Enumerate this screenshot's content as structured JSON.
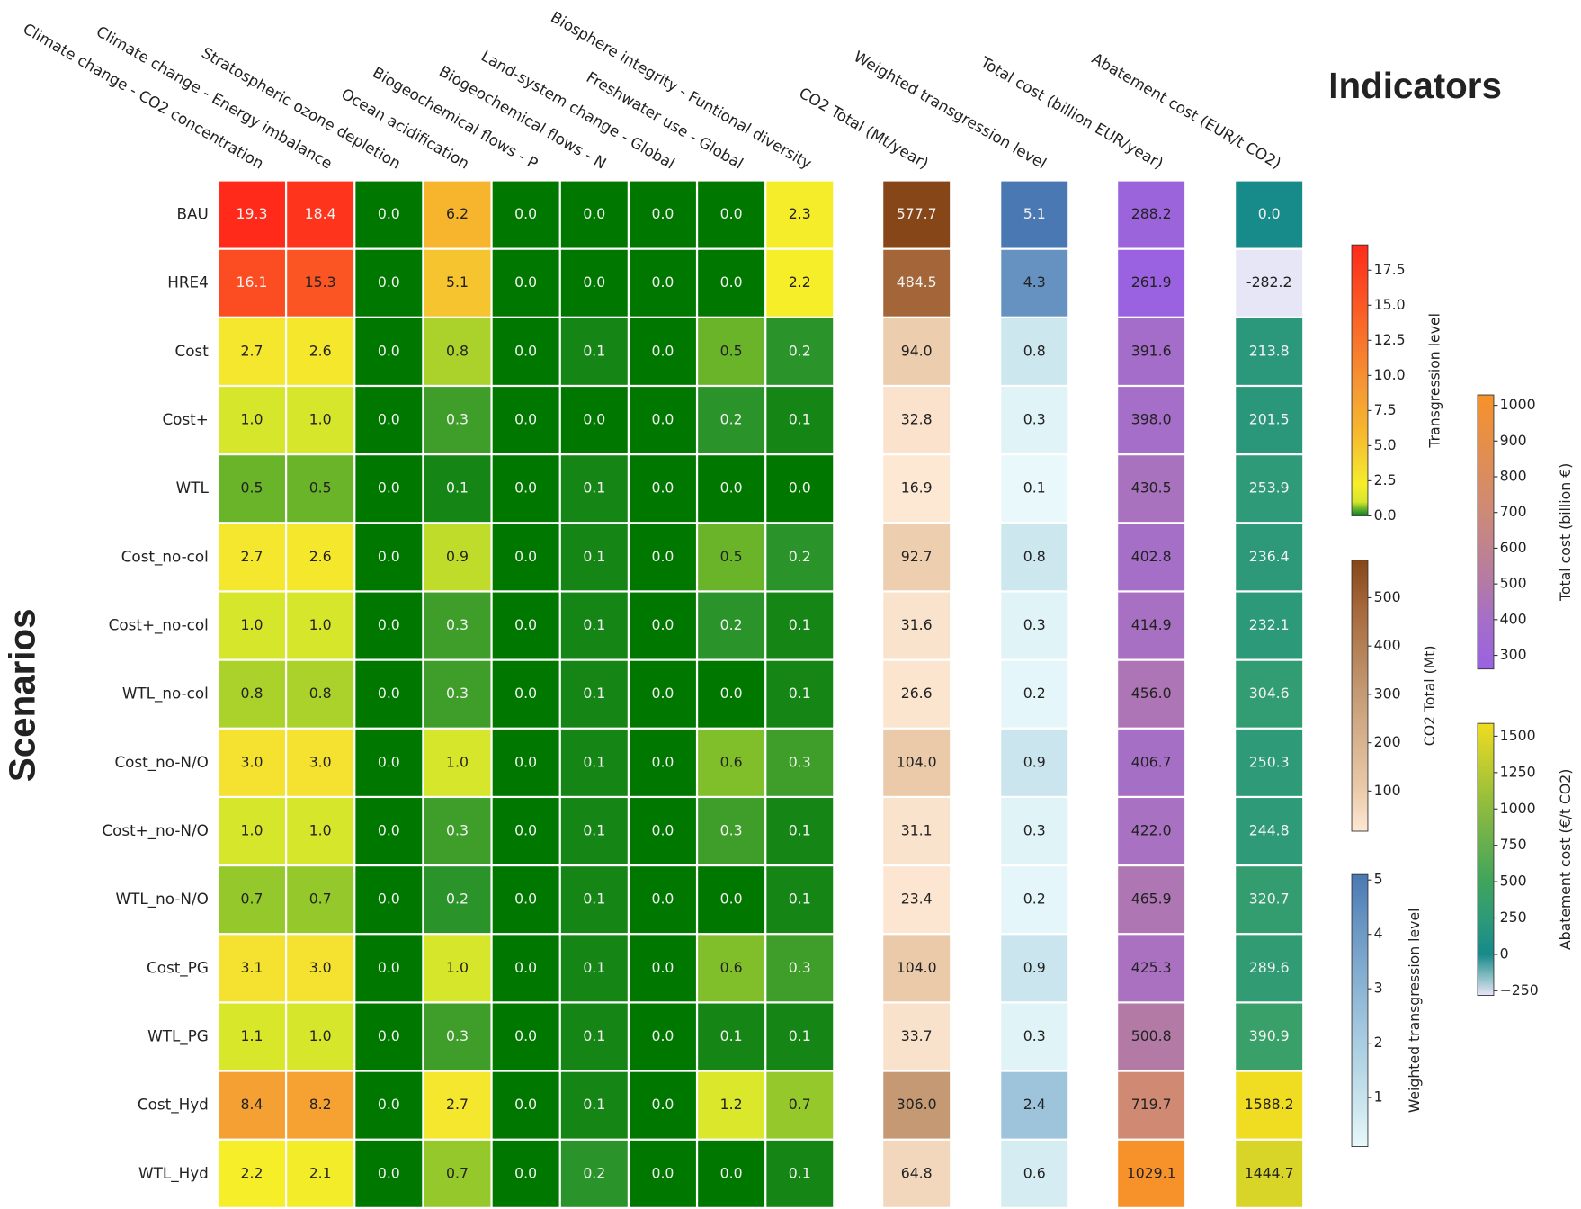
{
  "chart_data": {
    "type": "heatmap",
    "title": "Indicators",
    "ylabel": "Scenarios",
    "rows": [
      "BAU",
      "HRE4",
      "Cost",
      "Cost+",
      "WTL",
      "Cost_no-col",
      "Cost+_no-col",
      "WTL_no-col",
      "Cost_no-N/O",
      "Cost+_no-N/O",
      "WTL_no-N/O",
      "Cost_PG",
      "WTL_PG",
      "Cost_Hyd",
      "WTL_Hyd"
    ],
    "groups": [
      {
        "columns": [
          "Climate change - CO2 concentration",
          "Climate change - Energy imbalance",
          "Stratospheric ozone depletion",
          "Ocean acidification",
          "Biogeochemical flows - P",
          "Biogeochemical flows - N",
          "Land-system change - Global",
          "Freshwater use - Global",
          "Biosphere integrity - Funtional diversity"
        ],
        "values": [
          [
            19.3,
            18.4,
            0.0,
            6.2,
            0.0,
            0.0,
            0.0,
            0.0,
            2.3
          ],
          [
            16.1,
            15.3,
            0.0,
            5.1,
            0.0,
            0.0,
            0.0,
            0.0,
            2.2
          ],
          [
            2.7,
            2.6,
            0.0,
            0.8,
            0.0,
            0.1,
            0.0,
            0.5,
            0.2
          ],
          [
            1.0,
            1.0,
            0.0,
            0.3,
            0.0,
            0.0,
            0.0,
            0.2,
            0.1
          ],
          [
            0.5,
            0.5,
            0.0,
            0.1,
            0.0,
            0.1,
            0.0,
            0.0,
            0.0
          ],
          [
            2.7,
            2.6,
            0.0,
            0.9,
            0.0,
            0.1,
            0.0,
            0.5,
            0.2
          ],
          [
            1.0,
            1.0,
            0.0,
            0.3,
            0.0,
            0.1,
            0.0,
            0.2,
            0.1
          ],
          [
            0.8,
            0.8,
            0.0,
            0.3,
            0.0,
            0.1,
            0.0,
            0.0,
            0.1
          ],
          [
            3.0,
            3.0,
            0.0,
            1.0,
            0.0,
            0.1,
            0.0,
            0.6,
            0.3
          ],
          [
            1.0,
            1.0,
            0.0,
            0.3,
            0.0,
            0.1,
            0.0,
            0.3,
            0.1
          ],
          [
            0.7,
            0.7,
            0.0,
            0.2,
            0.0,
            0.1,
            0.0,
            0.0,
            0.1
          ],
          [
            3.1,
            3.0,
            0.0,
            1.0,
            0.0,
            0.1,
            0.0,
            0.6,
            0.3
          ],
          [
            1.1,
            1.0,
            0.0,
            0.3,
            0.0,
            0.1,
            0.0,
            0.1,
            0.1
          ],
          [
            8.4,
            8.2,
            0.0,
            2.7,
            0.0,
            0.1,
            0.0,
            1.2,
            0.7
          ],
          [
            2.2,
            2.1,
            0.0,
            0.7,
            0.0,
            0.2,
            0.0,
            0.0,
            0.1
          ]
        ],
        "value_labels": [
          [
            "19.3",
            "18.4",
            "0.0",
            "6.2",
            "0.0",
            "0.0",
            "0.0",
            "0.0",
            "2.3"
          ],
          [
            "16.1",
            "15.3",
            "0.0",
            "5.1",
            "0.0",
            "0.0",
            "0.0",
            "0.0",
            "2.2"
          ],
          [
            "2.7",
            "2.6",
            "0.0",
            "0.8",
            "0.0",
            "0.1",
            "0.0",
            "0.5",
            "0.2"
          ],
          [
            "1.0",
            "1.0",
            "0.0",
            "0.3",
            "0.0",
            "0.0",
            "0.0",
            "0.2",
            "0.1"
          ],
          [
            "0.5",
            "0.5",
            "0.0",
            "0.1",
            "0.0",
            "0.1",
            "0.0",
            "0.0",
            "0.0"
          ],
          [
            "2.7",
            "2.6",
            "0.0",
            "0.9",
            "0.0",
            "0.1",
            "0.0",
            "0.5",
            "0.2"
          ],
          [
            "1.0",
            "1.0",
            "0.0",
            "0.3",
            "0.0",
            "0.1",
            "0.0",
            "0.2",
            "0.1"
          ],
          [
            "0.8",
            "0.8",
            "0.0",
            "0.3",
            "0.0",
            "0.1",
            "0.0",
            "0.0",
            "0.1"
          ],
          [
            "3.0",
            "3.0",
            "0.0",
            "1.0",
            "0.0",
            "0.1",
            "0.0",
            "0.6",
            "0.3"
          ],
          [
            "1.0",
            "1.0",
            "0.0",
            "0.3",
            "0.0",
            "0.1",
            "0.0",
            "0.3",
            "0.1"
          ],
          [
            "0.7",
            "0.7",
            "0.0",
            "0.2",
            "0.0",
            "0.1",
            "0.0",
            "0.0",
            "0.1"
          ],
          [
            "3.1",
            "3.0",
            "0.0",
            "1.0",
            "0.0",
            "0.1",
            "0.0",
            "0.6",
            "0.3"
          ],
          [
            "1.1",
            "1.0",
            "0.0",
            "0.3",
            "0.0",
            "0.1",
            "0.0",
            "0.1",
            "0.1"
          ],
          [
            "8.4",
            "8.2",
            "0.0",
            "2.7",
            "0.0",
            "0.1",
            "0.0",
            "1.2",
            "0.7"
          ],
          [
            "2.2",
            "2.1",
            "0.0",
            "0.7",
            "0.0",
            "0.2",
            "0.0",
            "0.0",
            "0.1"
          ]
        ],
        "colorbar": {
          "label": "Transgression level",
          "lim": [
            0,
            19.3
          ],
          "ticks": [
            {
              "value": 0,
              "label": "0.0"
            },
            2.5,
            {
              "value": 5,
              "label": "5.0"
            },
            7.5,
            {
              "value": 10,
              "label": "10.0"
            },
            12.5,
            {
              "value": 15,
              "label": "15.0"
            },
            17.5
          ],
          "colors": [
            [
              0,
              "#007800"
            ],
            [
              0.2,
              "#2a932a"
            ],
            [
              0.5,
              "#6ab42a"
            ],
            [
              1.0,
              "#d6e62a"
            ],
            [
              2.2,
              "#f5ee28"
            ],
            [
              3.0,
              "#f5e230"
            ],
            [
              6.0,
              "#f7b72e"
            ],
            [
              9.0,
              "#f59a34"
            ],
            [
              19.3,
              "#ff2a1a"
            ]
          ]
        }
      },
      {
        "columns": [
          "CO2 Total (Mt/year)"
        ],
        "values": [
          [
            577.7
          ],
          [
            484.5
          ],
          [
            94.0
          ],
          [
            32.8
          ],
          [
            16.9
          ],
          [
            92.7
          ],
          [
            31.6
          ],
          [
            26.6
          ],
          [
            104.0
          ],
          [
            31.1
          ],
          [
            23.4
          ],
          [
            104.0
          ],
          [
            33.7
          ],
          [
            306.0
          ],
          [
            64.8
          ]
        ],
        "value_labels": [
          [
            "577.7"
          ],
          [
            "484.5"
          ],
          [
            "94.0"
          ],
          [
            "32.8"
          ],
          [
            "16.9"
          ],
          [
            "92.7"
          ],
          [
            "31.6"
          ],
          [
            "26.6"
          ],
          [
            "104.0"
          ],
          [
            "31.1"
          ],
          [
            "23.4"
          ],
          [
            "104.0"
          ],
          [
            "33.7"
          ],
          [
            "306.0"
          ],
          [
            "64.8"
          ]
        ],
        "colorbar": {
          "label": "CO2 Total (Mt)",
          "lim": [
            16.9,
            577.7
          ],
          "ticks": [
            100,
            200,
            300,
            400,
            500
          ],
          "colors": [
            [
              16.9,
              "#fde8d4"
            ],
            [
              100,
              "#ebcbaa"
            ],
            [
              300,
              "#c59b76"
            ],
            [
              480,
              "#a5683a"
            ],
            [
              577.7,
              "#874617"
            ]
          ]
        }
      },
      {
        "columns": [
          "Weighted transgression level"
        ],
        "values": [
          [
            5.1
          ],
          [
            4.3
          ],
          [
            0.8
          ],
          [
            0.3
          ],
          [
            0.1
          ],
          [
            0.8
          ],
          [
            0.3
          ],
          [
            0.2
          ],
          [
            0.9
          ],
          [
            0.3
          ],
          [
            0.2
          ],
          [
            0.9
          ],
          [
            0.3
          ],
          [
            2.4
          ],
          [
            0.6
          ]
        ],
        "value_labels": [
          [
            "5.1"
          ],
          [
            "4.3"
          ],
          [
            "0.8"
          ],
          [
            "0.3"
          ],
          [
            "0.1"
          ],
          [
            "0.8"
          ],
          [
            "0.3"
          ],
          [
            "0.2"
          ],
          [
            "0.9"
          ],
          [
            "0.3"
          ],
          [
            "0.2"
          ],
          [
            "0.9"
          ],
          [
            "0.3"
          ],
          [
            "2.4"
          ],
          [
            "0.6"
          ]
        ],
        "colorbar": {
          "label": "Weighted transgression level",
          "lim": [
            0.1,
            5.1
          ],
          "ticks": [
            1,
            2,
            3,
            4,
            5
          ],
          "colors": [
            [
              0.1,
              "#e8f8fb"
            ],
            [
              0.8,
              "#cde7ee"
            ],
            [
              2.4,
              "#9ec4dc"
            ],
            [
              4.3,
              "#6592c0"
            ],
            [
              5.1,
              "#4a78b2"
            ]
          ]
        }
      },
      {
        "columns": [
          "Total cost (billion EUR/year)"
        ],
        "values": [
          [
            288.2
          ],
          [
            261.9
          ],
          [
            391.6
          ],
          [
            398.0
          ],
          [
            430.5
          ],
          [
            402.8
          ],
          [
            414.9
          ],
          [
            456.0
          ],
          [
            406.7
          ],
          [
            422.0
          ],
          [
            465.9
          ],
          [
            425.3
          ],
          [
            500.8
          ],
          [
            719.7
          ],
          [
            1029.1
          ]
        ],
        "value_labels": [
          [
            "288.2"
          ],
          [
            "261.9"
          ],
          [
            "391.6"
          ],
          [
            "398.0"
          ],
          [
            "430.5"
          ],
          [
            "402.8"
          ],
          [
            "414.9"
          ],
          [
            "456.0"
          ],
          [
            "406.7"
          ],
          [
            "422.0"
          ],
          [
            "465.9"
          ],
          [
            "425.3"
          ],
          [
            "500.8"
          ],
          [
            "719.7"
          ],
          [
            "1029.1"
          ]
        ],
        "colorbar": {
          "label": "Total cost (billion €)",
          "lim": [
            261.9,
            1029.1
          ],
          "ticks": [
            300,
            400,
            500,
            600,
            700,
            800,
            900,
            1000
          ],
          "colors": [
            [
              261.9,
              "#9a62e0"
            ],
            [
              400,
              "#a56ec8"
            ],
            [
              500,
              "#b37aa6"
            ],
            [
              700,
              "#cd8a78"
            ],
            [
              1029.1,
              "#f7922a"
            ]
          ]
        }
      },
      {
        "columns": [
          "Abatement cost (EUR/t CO2)"
        ],
        "values": [
          [
            0.0
          ],
          [
            -282.2
          ],
          [
            213.8
          ],
          [
            201.5
          ],
          [
            253.9
          ],
          [
            236.4
          ],
          [
            232.1
          ],
          [
            304.6
          ],
          [
            250.3
          ],
          [
            244.8
          ],
          [
            320.7
          ],
          [
            289.6
          ],
          [
            390.9
          ],
          [
            1588.2
          ],
          [
            1444.7
          ]
        ],
        "value_labels": [
          [
            "0.0"
          ],
          [
            "-282.2"
          ],
          [
            "213.8"
          ],
          [
            "201.5"
          ],
          [
            "253.9"
          ],
          [
            "236.4"
          ],
          [
            "232.1"
          ],
          [
            "304.6"
          ],
          [
            "250.3"
          ],
          [
            "244.8"
          ],
          [
            "320.7"
          ],
          [
            "289.6"
          ],
          [
            "390.9"
          ],
          [
            "1588.2"
          ],
          [
            "1444.7"
          ]
        ],
        "colorbar": {
          "label": "Abatement cost (€/t CO2)",
          "lim": [
            -282.2,
            1588.2
          ],
          "ticks": [
            {
              "value": -250,
              "label": "−250"
            },
            0,
            250,
            500,
            750,
            1000,
            1250,
            1500
          ],
          "colors": [
            [
              -282.2,
              "#e6e6f6"
            ],
            [
              0,
              "#178a8a"
            ],
            [
              250,
              "#2e9a78"
            ],
            [
              500,
              "#3fa45c"
            ],
            [
              1000,
              "#8cba40"
            ],
            [
              1588.2,
              "#f0dc20"
            ]
          ]
        }
      }
    ]
  }
}
